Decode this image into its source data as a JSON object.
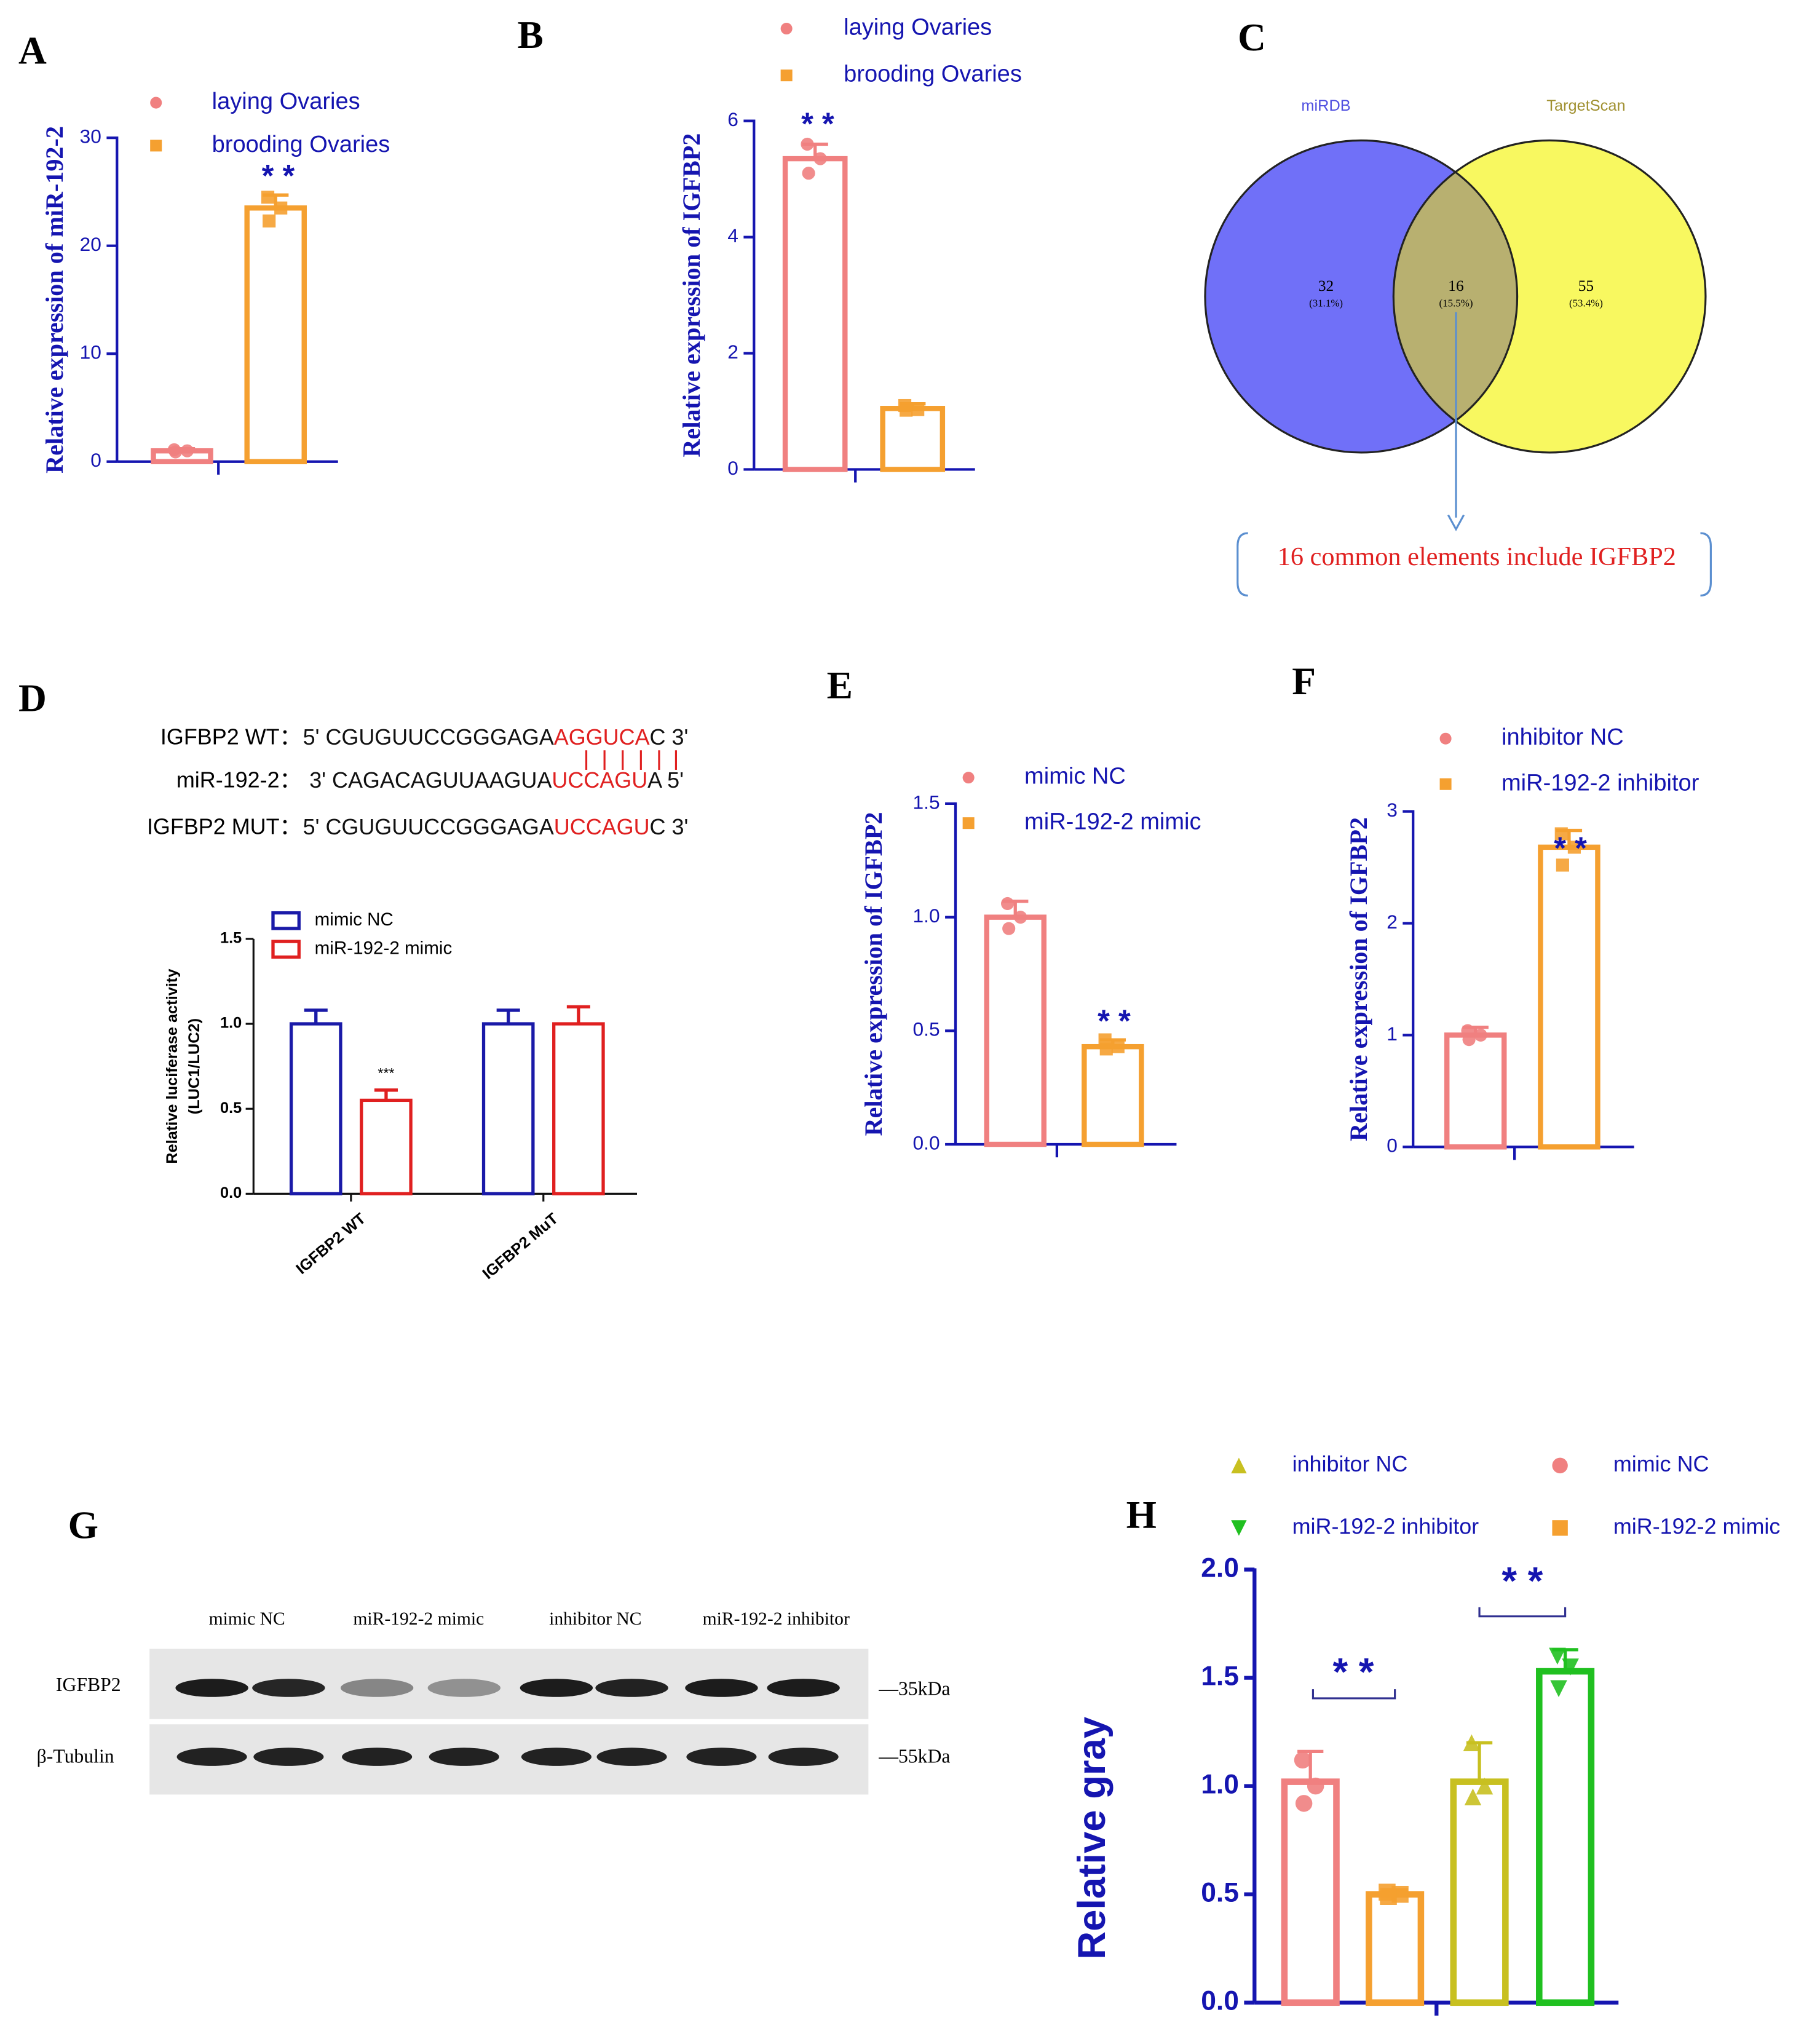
{
  "chart_data": [
    {
      "type": "bar",
      "panel": "A",
      "ylabel": "Relative expression of miR-192-2",
      "ylim": [
        0,
        30
      ],
      "yticks": [
        0,
        10,
        20,
        30
      ],
      "series": [
        {
          "name": "laying Ovaries",
          "color": "#f08080",
          "marker": "circle",
          "values": [
            1.0
          ],
          "errors": [
            0.2
          ],
          "points": [
            1.1,
            1.0,
            0.9
          ]
        },
        {
          "name": "brooding Ovaries",
          "color": "#f5a030",
          "marker": "square",
          "values": [
            23.5
          ],
          "errors": [
            1.2
          ],
          "points": [
            24.5,
            23.5,
            22.3
          ]
        }
      ],
      "annotations": [
        "* *"
      ]
    },
    {
      "type": "bar",
      "panel": "B",
      "ylabel": "Relative expression of IGFBP2",
      "ylim": [
        0,
        6
      ],
      "yticks": [
        0,
        2,
        4,
        6
      ],
      "series": [
        {
          "name": "laying Ovaries",
          "color": "#f08080",
          "marker": "circle",
          "values": [
            5.35
          ],
          "errors": [
            0.25
          ],
          "points": [
            5.6,
            5.35,
            5.1
          ]
        },
        {
          "name": "brooding Ovaries",
          "color": "#f5a030",
          "marker": "square",
          "values": [
            1.05
          ],
          "errors": [
            0.08
          ],
          "points": [
            1.1,
            1.03,
            1.02
          ]
        }
      ],
      "annotations": [
        "* *"
      ]
    },
    {
      "type": "venn",
      "panel": "C",
      "sets": [
        "miRDB",
        "TargetScan"
      ],
      "values": [
        32,
        16,
        55
      ],
      "percent_labels": [
        "(31.1%)",
        "(15.5%)",
        "(53.4%)"
      ],
      "annotation": "16 common elements include IGFBP2"
    },
    {
      "type": "grouped-bar",
      "panel": "D",
      "ylabel": [
        "Relative luciferase activity",
        "(LUC1/LUC2)"
      ],
      "categories": [
        "IGFBP2 WT",
        "IGFBP2 MuT"
      ],
      "ylim": [
        0,
        1.5
      ],
      "yticks": [
        {
          "value": 0,
          "label": "0.0"
        },
        {
          "value": 0.5,
          "label": "0.5"
        },
        {
          "value": 1,
          "label": "1.0"
        },
        {
          "value": 1.5,
          "label": "1.5"
        }
      ],
      "series": [
        {
          "name": "mimic NC",
          "color": "#1a1aa8",
          "values": [
            1.0,
            1.0
          ],
          "errors": [
            0.08,
            0.08
          ]
        },
        {
          "name": "miR-192-2 mimic",
          "color": "#e02020",
          "values": [
            0.55,
            1.0
          ],
          "errors": [
            0.06,
            0.1
          ]
        }
      ],
      "annotations": [
        "***"
      ],
      "sequences": [
        {
          "name": "IGFBP2 WT：",
          "parts": [
            "5'  CGUGUUCCGGGAGA",
            "AGGUCA",
            "C  3'"
          ]
        },
        {
          "name": "miR-192-2：",
          "parts": [
            "3'  CAGACAGUUAAGUA",
            "UCCAGU",
            "A  5'"
          ]
        },
        {
          "name": "IGFBP2 MUT：",
          "parts": [
            "5'  CGUGUUCCGGGAGA",
            "UCCAGU",
            "C  3'"
          ]
        }
      ]
    },
    {
      "type": "bar",
      "panel": "E",
      "ylabel": "Relative expression of IGFBP2",
      "ylim": [
        0,
        1.5
      ],
      "yticks": [
        {
          "value": 0,
          "label": "0.0"
        },
        {
          "value": 0.5,
          "label": "0.5"
        },
        {
          "value": 1,
          "label": "1.0"
        },
        {
          "value": 1.5,
          "label": "1.5"
        }
      ],
      "series": [
        {
          "name": "mimic NC",
          "color": "#f08080",
          "marker": "circle",
          "values": [
            1.0
          ],
          "errors": [
            0.07
          ],
          "points": [
            1.06,
            1.0,
            0.95
          ]
        },
        {
          "name": "miR-192-2 mimic",
          "color": "#f5a030",
          "marker": "square",
          "values": [
            0.43
          ],
          "errors": [
            0.03
          ],
          "points": [
            0.46,
            0.43,
            0.42
          ]
        }
      ],
      "annotations": [
        "* *"
      ]
    },
    {
      "type": "bar",
      "panel": "F",
      "ylabel": "Relative expression of IGFBP2",
      "ylim": [
        0,
        3
      ],
      "yticks": [
        0,
        1,
        2,
        3
      ],
      "series": [
        {
          "name": "inhibitor NC",
          "color": "#f08080",
          "marker": "circle",
          "values": [
            1.0
          ],
          "errors": [
            0.07
          ],
          "points": [
            1.04,
            1.0,
            0.96
          ]
        },
        {
          "name": "miR-192-2 inhibitor",
          "color": "#f5a030",
          "marker": "square",
          "values": [
            2.68
          ],
          "errors": [
            0.15
          ],
          "points": [
            2.8,
            2.68,
            2.52
          ]
        }
      ],
      "annotations": [
        "* *"
      ]
    },
    {
      "type": "bar",
      "panel": "H",
      "ylabel": "Relative gray",
      "ylim": [
        0,
        2
      ],
      "yticks": [
        {
          "value": 0,
          "label": "0.0"
        },
        {
          "value": 0.5,
          "label": "0.5"
        },
        {
          "value": 1,
          "label": "1.0"
        },
        {
          "value": 1.5,
          "label": "1.5"
        },
        {
          "value": 2,
          "label": "2.0"
        }
      ],
      "series": [
        {
          "name": "mimic NC",
          "color": "#f08080",
          "marker": "circle",
          "values": [
            1.02
          ],
          "errors": [
            0.14
          ],
          "points": [
            1.12,
            1.0,
            0.92
          ]
        },
        {
          "name": "miR-192-2 mimic",
          "color": "#f5a030",
          "marker": "square",
          "values": [
            0.5
          ],
          "errors": [
            0.02
          ],
          "points": [
            0.51,
            0.5,
            0.49
          ]
        },
        {
          "name": "inhibitor NC",
          "color": "#c8c020",
          "marker": "triangle",
          "values": [
            1.02
          ],
          "errors": [
            0.18
          ],
          "points": [
            1.2,
            1.0,
            0.95
          ]
        },
        {
          "name": "miR-192-2 inhibitor",
          "color": "#20c020",
          "marker": "triangle-down",
          "values": [
            1.53
          ],
          "errors": [
            0.1
          ],
          "points": [
            1.6,
            1.55,
            1.45
          ]
        }
      ],
      "annotations": [
        "* *",
        "* *"
      ]
    }
  ],
  "blot": {
    "panel": "G",
    "lanes": [
      "mimic NC",
      "miR-192-2 mimic",
      "inhibitor NC",
      "miR-192-2 inhibitor"
    ],
    "rows": [
      "IGFBP2",
      "β-Tubulin"
    ],
    "sizes": [
      "—35kDa",
      "—55kDa"
    ]
  }
}
